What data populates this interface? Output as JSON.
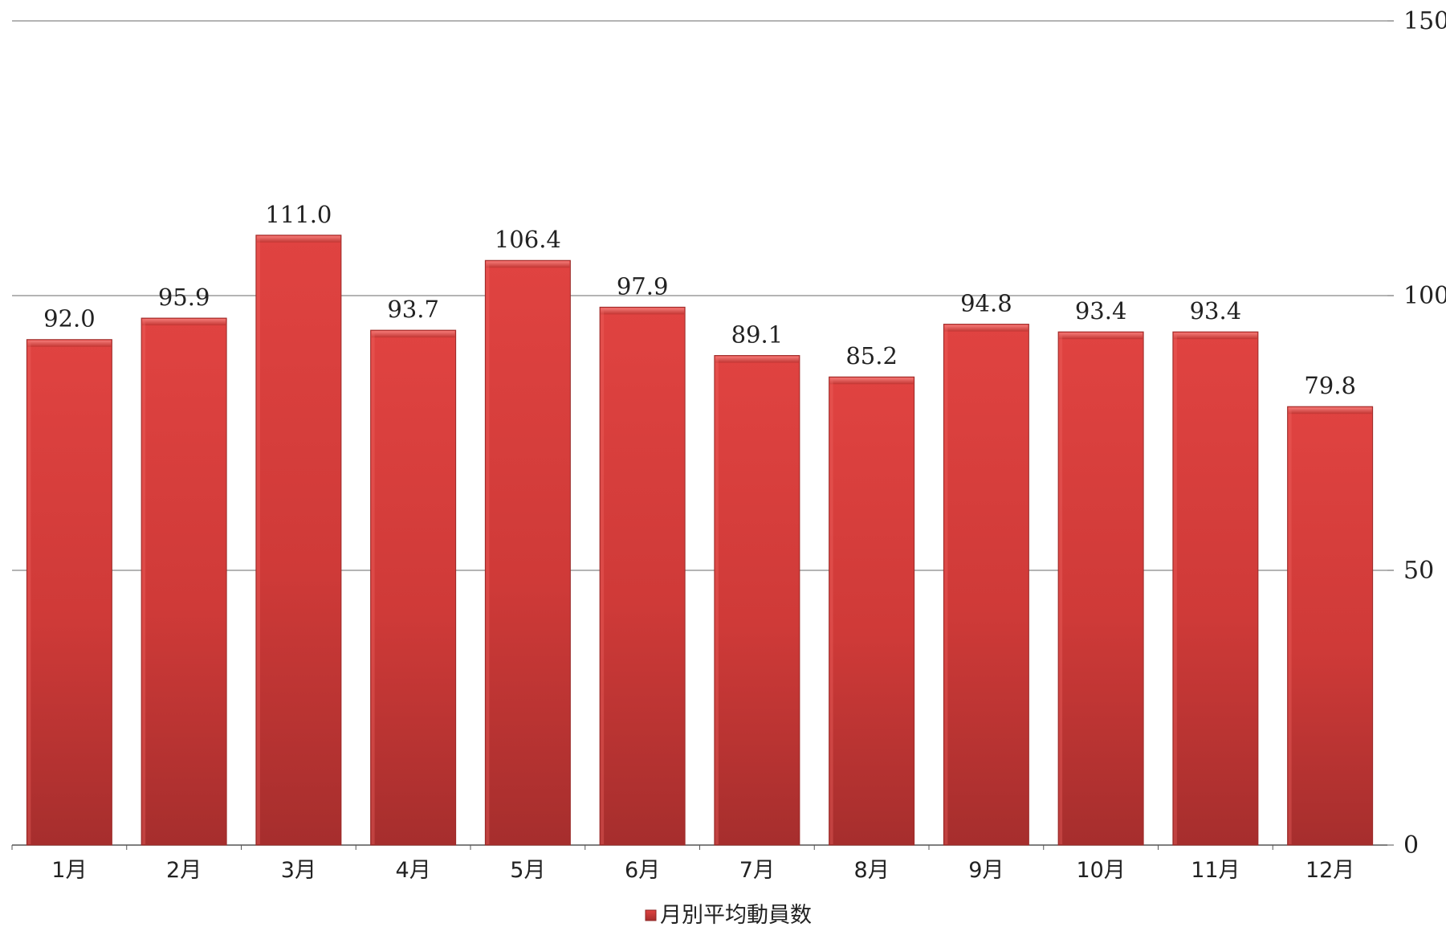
{
  "chart_data": {
    "type": "bar",
    "categories": [
      "1月",
      "2月",
      "3月",
      "4月",
      "5月",
      "6月",
      "7月",
      "8月",
      "9月",
      "10月",
      "11月",
      "12月"
    ],
    "series": [
      {
        "name": "月別平均動員数",
        "values": [
          92.0,
          95.9,
          111.0,
          93.7,
          106.4,
          97.9,
          89.1,
          85.2,
          94.8,
          93.4,
          93.4,
          79.8
        ],
        "labels": [
          "92.0",
          "95.9",
          "111.0",
          "93.7",
          "106.4",
          "97.9",
          "89.1",
          "85.2",
          "94.8",
          "93.4",
          "93.4",
          "79.8"
        ],
        "color": "#d93c3a"
      }
    ],
    "title": "",
    "xlabel": "",
    "ylabel": "",
    "ylim": [
      0,
      150
    ],
    "yticks": [
      "0",
      "50",
      "100",
      "150"
    ],
    "y_axis_side": "right",
    "grid": true,
    "legend": "bottom-center"
  }
}
